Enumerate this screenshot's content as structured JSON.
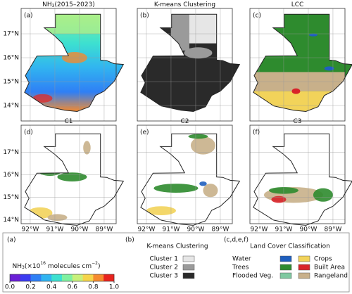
{
  "panels": [
    {
      "label": "(a)",
      "title": [
        "NH",
        "3",
        "(2015–2023)"
      ]
    },
    {
      "label": "(b)",
      "title": [
        "K-means Clustering"
      ]
    },
    {
      "label": "(c)",
      "title": [
        "LCC"
      ]
    },
    {
      "label": "(d)",
      "title": [
        "C1"
      ]
    },
    {
      "label": "(e)",
      "title": [
        "C2"
      ]
    },
    {
      "label": "(f)",
      "title": [
        "C3"
      ]
    }
  ],
  "lat_ticks": [
    {
      "value": 17,
      "label": "17°N"
    },
    {
      "value": 16,
      "label": "16°N"
    },
    {
      "value": 15,
      "label": "15°N"
    },
    {
      "value": 14,
      "label": "14°N"
    }
  ],
  "lon_ticks": [
    {
      "value": -92,
      "label": "92°W"
    },
    {
      "value": -91,
      "label": "91°W"
    },
    {
      "value": -90,
      "label": "90°W"
    },
    {
      "value": -89,
      "label": "89°W"
    }
  ],
  "colorbar": {
    "panel_label": "(a)",
    "label": [
      "NH",
      "3",
      "(×10",
      "16",
      " molecules cm",
      "−2",
      ")"
    ],
    "lim": [
      0,
      1
    ],
    "colors": [
      "#6a1fd6",
      "#3b3bf0",
      "#2f7ff5",
      "#31b4f0",
      "#3de0d0",
      "#7ff0a0",
      "#c8f07a",
      "#f5d44a",
      "#f58a2e",
      "#e8231e"
    ],
    "ticks": [
      {
        "value": 0,
        "label": "0.0"
      },
      {
        "value": 0.2,
        "label": "0.2"
      },
      {
        "value": 0.4,
        "label": "0.4"
      },
      {
        "value": 0.6,
        "label": "0.6"
      },
      {
        "value": 0.8,
        "label": "0.8"
      },
      {
        "value": 1,
        "label": "1.0"
      }
    ]
  },
  "kmeans_legend": {
    "panel_label": "(b)",
    "title": "K-means Clustering",
    "items": [
      {
        "name": "Cluster 1",
        "color": "#e6e6e6"
      },
      {
        "name": "Cluster 2",
        "color": "#9a9a9a"
      },
      {
        "name": "Cluster 3",
        "color": "#2a2a2a"
      }
    ]
  },
  "lcc_legend": {
    "panel_label": "(c,d,e,f)",
    "title": "Land Cover Classification",
    "items": [
      {
        "name": "Water",
        "color": "#1f5fbf"
      },
      {
        "name": "Trees",
        "color": "#2e8b2e"
      },
      {
        "name": "Flooded Veg.",
        "color": "#7fc8a0"
      },
      {
        "name": "Crops",
        "color": "#f2d35a"
      },
      {
        "name": "Built Area",
        "color": "#d8232a"
      },
      {
        "name": "Rangeland",
        "color": "#c8b08a"
      }
    ]
  }
}
